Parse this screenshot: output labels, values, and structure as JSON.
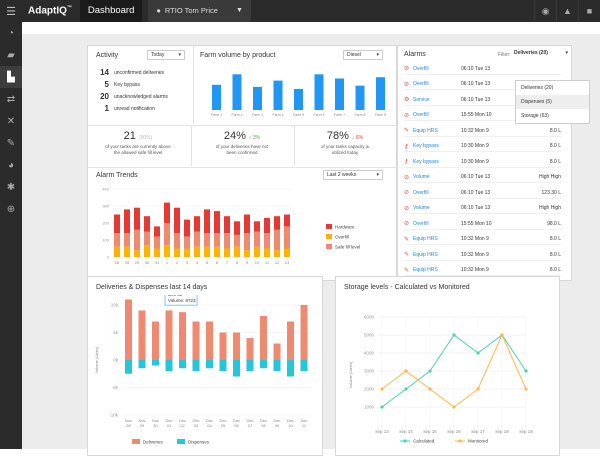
{
  "topbar": {
    "brand": "AdaptIQ",
    "brand_tm": "™",
    "title": "Dashboard",
    "site": "RTIO Tom Price"
  },
  "sidebar": {
    "items": [
      "gauge-icon",
      "truck-icon",
      "factory-icon",
      "transfer-icon",
      "tools-icon",
      "wrench-icon",
      "pie-icon",
      "gear-icon",
      "lifebuoy-icon"
    ]
  },
  "activity": {
    "title": "Activity",
    "period": "Today",
    "items": [
      {
        "value": "14",
        "label": "unconfirmed deliveries"
      },
      {
        "value": "5",
        "label": "Key bypass"
      },
      {
        "value": "20",
        "label": "unacknowledged alarms"
      },
      {
        "value": "1",
        "label": "unread notification"
      }
    ]
  },
  "farm": {
    "title": "Farm volume by product",
    "product": "Diesel",
    "colors": {
      "bar": "#2196f3"
    }
  },
  "stats": [
    {
      "value": "21",
      "suffix": "(90%)",
      "line1": "of your tanks are currently above",
      "line2": "the allowed safe fill level"
    },
    {
      "value": "24%",
      "suffix": "↑ 3%",
      "line1": "of your deliveries have not",
      "line2": "been confirmed"
    },
    {
      "value": "78%",
      "suffix": "↓ 6%",
      "line1": "of your tanks capacity is",
      "line2": "utilized today"
    }
  ],
  "trends": {
    "title": "Alarm Trends",
    "period": "Last 2 weeks",
    "legend": [
      {
        "label": "Hardware",
        "color": "#e53935"
      },
      {
        "label": "Overfill",
        "color": "#ffb300"
      },
      {
        "label": "Safe fill level",
        "color": "#ef8a72"
      }
    ],
    "colors": {
      "hardware": "#e53935",
      "overfill": "#ffb300",
      "safe": "#ef8a72"
    }
  },
  "alarms": {
    "title": "Alarms",
    "filter_label": "Filter:",
    "filter_value": "Deliveries (20)",
    "dropdown": [
      "Deliveries (20)",
      "Dispenses (5)",
      "Storage (63)"
    ],
    "rows": [
      {
        "icon": "alarm-icon",
        "type": "Overfill",
        "time": "06:10 Tue 13",
        "value": ""
      },
      {
        "icon": "alarm-icon",
        "type": "Overfill",
        "time": "06:10 Tue 13",
        "value": ""
      },
      {
        "icon": "service-icon",
        "type": "Service",
        "time": "06:10 Tue 13",
        "value": ""
      },
      {
        "icon": "alarm-icon",
        "type": "Overfill",
        "time": "15:55 Mon 10",
        "value": "98.0 L"
      },
      {
        "icon": "tool-icon",
        "type": "Equip HRS",
        "time": "10:32 Mon 9",
        "value": "8.0 L"
      },
      {
        "icon": "key-icon",
        "type": "Key bypass",
        "time": "10:30 Mon 9",
        "value": "8.0 L"
      },
      {
        "icon": "key-icon",
        "type": "Key bypass",
        "time": "10:30 Mon 9",
        "value": "8.0 L"
      },
      {
        "icon": "alarm-icon",
        "type": "Volume",
        "time": "06:10 Tue 13",
        "value": "High High"
      },
      {
        "icon": "alarm-icon",
        "type": "Overfill",
        "time": "06:10 Tue 13",
        "value": "123.30 L"
      },
      {
        "icon": "alarm-icon",
        "type": "Volume",
        "time": "06:10 Tue 13",
        "value": "High High"
      },
      {
        "icon": "alarm-icon",
        "type": "Overfill",
        "time": "15:55 Mon 10",
        "value": "98.0 L"
      },
      {
        "icon": "tool-icon",
        "type": "Equip HRS",
        "time": "10:32 Mon 9",
        "value": "8.0 L"
      },
      {
        "icon": "tool-icon",
        "type": "Equip HRS",
        "time": "10:32 Mon 9",
        "value": "8.0 L"
      },
      {
        "icon": "tool-icon",
        "type": "Equip HRS",
        "time": "10:32 Mon 9",
        "value": "8.0 L"
      }
    ]
  },
  "deliveries": {
    "title": "Deliveries & Dispenses last 14 days",
    "tooltip": {
      "date": "Dec 02",
      "label": "Volume:",
      "value": "8723"
    },
    "legend": [
      {
        "label": "Deliveries",
        "color": "#ef8a72"
      },
      {
        "label": "Dispenses",
        "color": "#26c6da"
      }
    ]
  },
  "storage": {
    "title": "Storage levels - Calculated vs Monitored",
    "legend": [
      {
        "label": "Calculated",
        "color": "#4dd0b3"
      },
      {
        "label": "Monitored",
        "color": "#ffb74d"
      }
    ]
  },
  "chart_data": [
    {
      "type": "bar",
      "title": "Farm volume by product",
      "categories": [
        "Farm 1",
        "Farm 2",
        "Farm 3",
        "Farm 4",
        "Farm 5",
        "Farm 6",
        "Farm 7",
        "Farm 8",
        "Farm 9"
      ],
      "values": [
        60,
        85,
        55,
        70,
        50,
        85,
        75,
        58,
        78
      ],
      "ylim": [
        0,
        100
      ]
    },
    {
      "type": "bar",
      "title": "Alarm Trends",
      "stacked": true,
      "categories": [
        "26",
        "28",
        "29",
        "30",
        "31",
        "1",
        "2",
        "3",
        "4",
        "5",
        "6",
        "7",
        "8",
        "9",
        "10",
        "11",
        "12",
        "13"
      ],
      "series": [
        {
          "name": "Hardware",
          "values": [
            110,
            140,
            130,
            90,
            60,
            120,
            150,
            100,
            90,
            140,
            130,
            100,
            80,
            110,
            60,
            90,
            80,
            70
          ]
        },
        {
          "name": "Overfill",
          "values": [
            60,
            60,
            40,
            70,
            50,
            70,
            50,
            50,
            60,
            60,
            60,
            50,
            60,
            40,
            60,
            50,
            40,
            50
          ]
        },
        {
          "name": "Safe fill level",
          "values": [
            80,
            80,
            120,
            80,
            70,
            130,
            90,
            70,
            90,
            80,
            80,
            90,
            70,
            100,
            90,
            90,
            120,
            130
          ]
        }
      ],
      "ylim": [
        0,
        400
      ],
      "yticks": [
        0,
        100,
        200,
        300,
        400
      ],
      "xticks": [
        "26",
        "28",
        "29",
        "30",
        "31",
        "1",
        "2",
        "3",
        "4",
        "5",
        "6",
        "7",
        "8",
        "9",
        "10",
        "11",
        "12",
        "13"
      ]
    },
    {
      "type": "bar",
      "title": "Deliveries & Dispenses last 14 days",
      "ylabel": "Volume (Litres)",
      "categories": [
        "Nov 28",
        "Nov 29",
        "Nov 30",
        "Dec 01",
        "Dec 02",
        "Dec 03",
        "Dec 04",
        "Dec 05",
        "Dec 06",
        "Dec 07",
        "Dec 08",
        "Dec 09",
        "Dec 10",
        "Dec 11"
      ],
      "series": [
        {
          "name": "Deliveries",
          "values": [
            11,
            9,
            7,
            9,
            8.7,
            7,
            7,
            5,
            5,
            4,
            8,
            3,
            7,
            10
          ]
        },
        {
          "name": "Dispenses",
          "values": [
            -2.5,
            -1.5,
            -1,
            -2,
            -1.5,
            -2,
            -1.5,
            -2,
            -3,
            -2,
            -1.5,
            -2,
            -3,
            -2
          ]
        }
      ],
      "ylim": [
        -10,
        15
      ],
      "yticks": [
        "-10k",
        "-5k",
        "0k",
        "5k",
        "10k",
        "15k"
      ]
    },
    {
      "type": "line",
      "title": "Storage levels - Calculated vs Monitored",
      "ylabel": "Volume (Litres)",
      "x": [
        "sep 13",
        "sep 14",
        "sep 15",
        "sep 16",
        "sep 17",
        "sep 18",
        "sep 19"
      ],
      "series": [
        {
          "name": "Calculated",
          "values": [
            1000,
            2000,
            3000,
            5000,
            4000,
            5000,
            3000
          ]
        },
        {
          "name": "Monitored",
          "values": [
            2000,
            3000,
            2000,
            1000,
            2000,
            5000,
            2000
          ]
        }
      ],
      "ylim": [
        0,
        6000
      ],
      "yticks": [
        "1000",
        "2000",
        "3000",
        "4000",
        "5000",
        "6000"
      ]
    }
  ]
}
